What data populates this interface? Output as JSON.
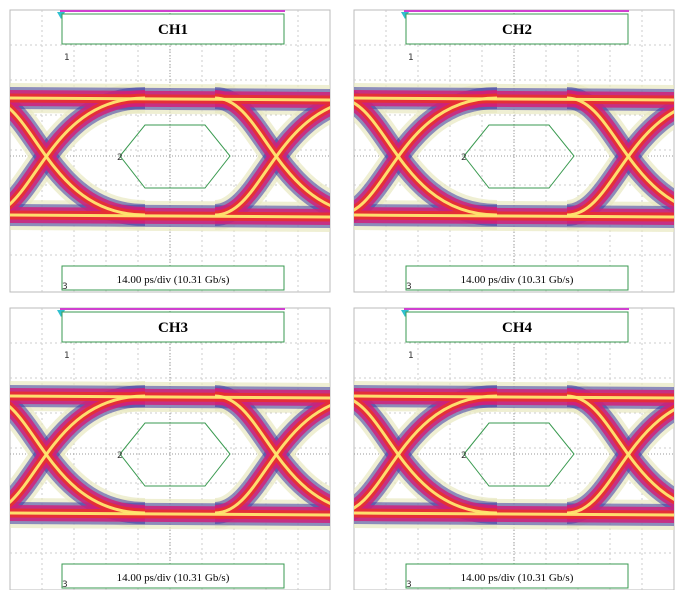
{
  "panels": [
    {
      "title": "CH1",
      "markers": [
        "1",
        "2",
        "3"
      ],
      "caption": "14.00 ps/div (10.31 Gb/s)"
    },
    {
      "title": "CH2",
      "markers": [
        "1",
        "2",
        "3"
      ],
      "caption": "14.00 ps/div (10.31 Gb/s)"
    },
    {
      "title": "CH3",
      "markers": [
        "1",
        "2",
        "3"
      ],
      "caption": "14.00 ps/div (10.31 Gb/s)"
    },
    {
      "title": "CH4",
      "markers": [
        "1",
        "2",
        "3"
      ],
      "caption": "14.00 ps/div (10.31 Gb/s)"
    }
  ]
}
